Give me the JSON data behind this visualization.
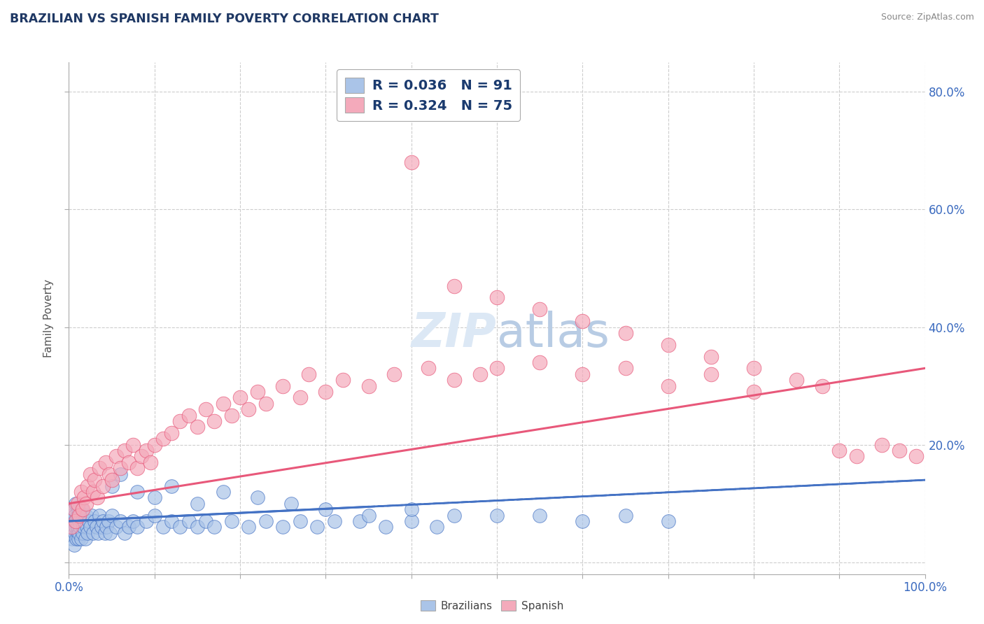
{
  "title": "BRAZILIAN VS SPANISH FAMILY POVERTY CORRELATION CHART",
  "source": "Source: ZipAtlas.com",
  "ylabel": "Family Poverty",
  "y_ticks": [
    0.0,
    0.2,
    0.4,
    0.6,
    0.8
  ],
  "y_tick_labels_right": [
    "",
    "20.0%",
    "40.0%",
    "60.0%",
    "80.0%"
  ],
  "x_range": [
    0.0,
    1.0
  ],
  "y_range": [
    -0.02,
    0.85
  ],
  "brazil_R": 0.036,
  "brazil_N": 91,
  "spanish_R": 0.324,
  "spanish_N": 75,
  "brazil_color": "#aac4e8",
  "spanish_color": "#f4aabb",
  "brazil_line_color": "#4472c4",
  "spanish_line_color": "#e8587a",
  "background_color": "#ffffff",
  "grid_color": "#c8c8c8",
  "title_color": "#1f3864",
  "legend_label_brazil": "Brazilians",
  "legend_label_spanish": "Spanish",
  "brazil_x": [
    0.002,
    0.003,
    0.004,
    0.005,
    0.005,
    0.006,
    0.006,
    0.007,
    0.007,
    0.008,
    0.008,
    0.009,
    0.009,
    0.01,
    0.01,
    0.01,
    0.011,
    0.011,
    0.012,
    0.012,
    0.013,
    0.013,
    0.014,
    0.015,
    0.015,
    0.016,
    0.017,
    0.018,
    0.019,
    0.02,
    0.021,
    0.022,
    0.023,
    0.025,
    0.027,
    0.028,
    0.03,
    0.032,
    0.034,
    0.036,
    0.038,
    0.04,
    0.042,
    0.044,
    0.046,
    0.048,
    0.05,
    0.055,
    0.06,
    0.065,
    0.07,
    0.075,
    0.08,
    0.09,
    0.1,
    0.11,
    0.12,
    0.13,
    0.14,
    0.15,
    0.16,
    0.17,
    0.19,
    0.21,
    0.23,
    0.25,
    0.27,
    0.29,
    0.31,
    0.34,
    0.37,
    0.4,
    0.43,
    0.05,
    0.06,
    0.08,
    0.1,
    0.12,
    0.15,
    0.18,
    0.22,
    0.26,
    0.3,
    0.35,
    0.4,
    0.45,
    0.5,
    0.55,
    0.6,
    0.65,
    0.7
  ],
  "brazil_y": [
    0.05,
    0.08,
    0.04,
    0.06,
    0.09,
    0.07,
    0.03,
    0.05,
    0.08,
    0.06,
    0.1,
    0.04,
    0.07,
    0.05,
    0.08,
    0.06,
    0.09,
    0.04,
    0.07,
    0.05,
    0.06,
    0.08,
    0.04,
    0.07,
    0.09,
    0.05,
    0.06,
    0.07,
    0.04,
    0.08,
    0.06,
    0.05,
    0.07,
    0.06,
    0.08,
    0.05,
    0.07,
    0.06,
    0.05,
    0.08,
    0.06,
    0.07,
    0.05,
    0.06,
    0.07,
    0.05,
    0.08,
    0.06,
    0.07,
    0.05,
    0.06,
    0.07,
    0.06,
    0.07,
    0.08,
    0.06,
    0.07,
    0.06,
    0.07,
    0.06,
    0.07,
    0.06,
    0.07,
    0.06,
    0.07,
    0.06,
    0.07,
    0.06,
    0.07,
    0.07,
    0.06,
    0.07,
    0.06,
    0.13,
    0.15,
    0.12,
    0.11,
    0.13,
    0.1,
    0.12,
    0.11,
    0.1,
    0.09,
    0.08,
    0.09,
    0.08,
    0.08,
    0.08,
    0.07,
    0.08,
    0.07
  ],
  "spanish_x": [
    0.003,
    0.006,
    0.008,
    0.01,
    0.012,
    0.014,
    0.016,
    0.018,
    0.02,
    0.022,
    0.025,
    0.028,
    0.03,
    0.033,
    0.036,
    0.04,
    0.043,
    0.047,
    0.05,
    0.055,
    0.06,
    0.065,
    0.07,
    0.075,
    0.08,
    0.085,
    0.09,
    0.095,
    0.1,
    0.11,
    0.12,
    0.13,
    0.14,
    0.15,
    0.16,
    0.17,
    0.18,
    0.19,
    0.2,
    0.21,
    0.22,
    0.23,
    0.25,
    0.27,
    0.28,
    0.3,
    0.32,
    0.35,
    0.38,
    0.42,
    0.45,
    0.48,
    0.5,
    0.55,
    0.6,
    0.65,
    0.7,
    0.75,
    0.8,
    0.85,
    0.88,
    0.9,
    0.92,
    0.95,
    0.97,
    0.99,
    0.4,
    0.45,
    0.5,
    0.55,
    0.6,
    0.65,
    0.7,
    0.75,
    0.8
  ],
  "spanish_y": [
    0.06,
    0.09,
    0.07,
    0.1,
    0.08,
    0.12,
    0.09,
    0.11,
    0.1,
    0.13,
    0.15,
    0.12,
    0.14,
    0.11,
    0.16,
    0.13,
    0.17,
    0.15,
    0.14,
    0.18,
    0.16,
    0.19,
    0.17,
    0.2,
    0.16,
    0.18,
    0.19,
    0.17,
    0.2,
    0.21,
    0.22,
    0.24,
    0.25,
    0.23,
    0.26,
    0.24,
    0.27,
    0.25,
    0.28,
    0.26,
    0.29,
    0.27,
    0.3,
    0.28,
    0.32,
    0.29,
    0.31,
    0.3,
    0.32,
    0.33,
    0.31,
    0.32,
    0.33,
    0.34,
    0.32,
    0.33,
    0.3,
    0.32,
    0.29,
    0.31,
    0.3,
    0.19,
    0.18,
    0.2,
    0.19,
    0.18,
    0.68,
    0.47,
    0.45,
    0.43,
    0.41,
    0.39,
    0.37,
    0.35,
    0.33
  ]
}
